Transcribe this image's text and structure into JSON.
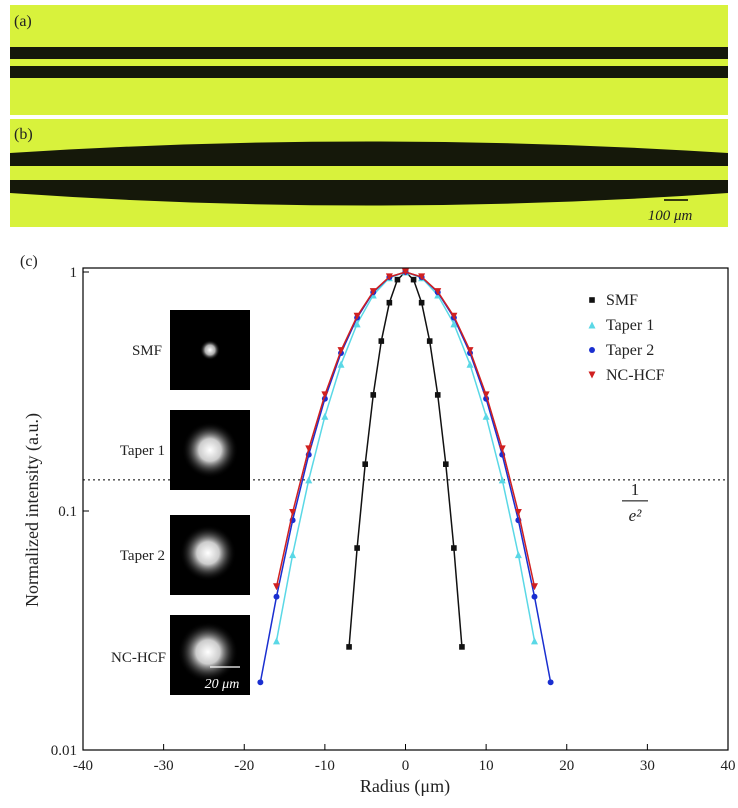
{
  "figure": {
    "panels": [
      {
        "label": "(a)"
      },
      {
        "label": "(b)"
      }
    ],
    "scale_bar": "100 μm",
    "insets": [
      "SMF",
      "Taper 1",
      "Taper 2",
      "NC-HCF"
    ],
    "inset_scale": "20 μm"
  },
  "chart_data": {
    "type": "scatter",
    "panel_label": "(c)",
    "x_label": "Radius (μm)",
    "y_label": "Normalized intensity (a.u.)",
    "log_y": true,
    "xlim": [
      -40,
      40
    ],
    "xticks": [
      -40,
      -30,
      -20,
      -10,
      0,
      10,
      20,
      30,
      40
    ],
    "ylim": [
      0.01,
      1
    ],
    "yticks": [
      0.01,
      0.1,
      1
    ],
    "legend": "top-right",
    "threshold": {
      "value": 0.135,
      "numerator": "1",
      "denominator": "e²"
    },
    "series": [
      {
        "name": "SMF",
        "color": "#111111",
        "marker": "square",
        "x": [
          -7,
          -6,
          -5,
          -4,
          -3,
          -2,
          -1,
          0,
          1,
          2,
          3,
          4,
          5,
          6,
          7
        ],
        "values": [
          0.027,
          0.07,
          0.157,
          0.306,
          0.514,
          0.744,
          0.929,
          1,
          0.929,
          0.744,
          0.514,
          0.306,
          0.157,
          0.07,
          0.027
        ]
      },
      {
        "name": "Taper 1",
        "color": "#5ad8e6",
        "marker": "triangle-up",
        "x": [
          -16,
          -14,
          -12,
          -10,
          -8,
          -6,
          -4,
          -2,
          0,
          2,
          4,
          6,
          8,
          10,
          12,
          14,
          16
        ],
        "values": [
          0.0286,
          0.0657,
          0.135,
          0.249,
          0.411,
          0.607,
          0.801,
          0.946,
          1,
          0.946,
          0.801,
          0.607,
          0.411,
          0.249,
          0.135,
          0.0657,
          0.0286
        ]
      },
      {
        "name": "Taper 2",
        "color": "#1a2fd0",
        "marker": "circle",
        "x": [
          -18,
          -16,
          -14,
          -12,
          -10,
          -8,
          -6,
          -4,
          -2,
          0,
          2,
          4,
          6,
          8,
          10,
          12,
          14,
          16,
          18
        ],
        "values": [
          0.0192,
          0.0438,
          0.0915,
          0.172,
          0.295,
          0.458,
          0.644,
          0.823,
          0.952,
          1,
          0.952,
          0.823,
          0.644,
          0.458,
          0.295,
          0.172,
          0.0915,
          0.0438,
          0.0192
        ]
      },
      {
        "name": "NC-HCF",
        "color": "#d02020",
        "marker": "triangle-down",
        "x": [
          -16,
          -14,
          -12,
          -10,
          -8,
          -6,
          -4,
          -2,
          0,
          2,
          4,
          6,
          8,
          10,
          12,
          14,
          16
        ],
        "values": [
          0.0482,
          0.0986,
          0.182,
          0.306,
          0.469,
          0.653,
          0.828,
          0.954,
          1,
          0.954,
          0.828,
          0.653,
          0.469,
          0.306,
          0.182,
          0.0986,
          0.0482
        ]
      }
    ]
  }
}
